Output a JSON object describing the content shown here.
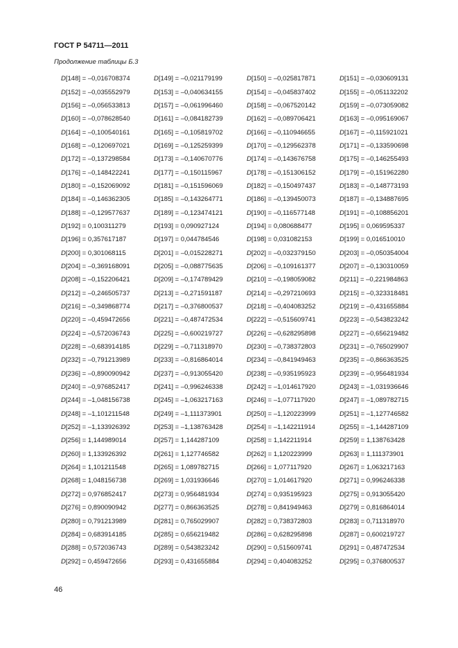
{
  "header": {
    "title": "ГОСТ Р 54711—2011"
  },
  "caption": "Продолжение таблицы Б.3",
  "symbol": "D",
  "rows": [
    [
      [
        "148",
        "–0,016708374"
      ],
      [
        "149",
        "–0,021179199"
      ],
      [
        "150",
        "–0,025817871"
      ],
      [
        "151",
        "–0,030609131"
      ]
    ],
    [
      [
        "152",
        "–0,035552979"
      ],
      [
        "153",
        "–0,040634155"
      ],
      [
        "154",
        "–0,045837402"
      ],
      [
        "155",
        "–0,051132202"
      ]
    ],
    [
      [
        "156",
        "–0,056533813"
      ],
      [
        "157",
        "–0,061996460"
      ],
      [
        "158",
        "–0,067520142"
      ],
      [
        "159",
        "–0,073059082"
      ]
    ],
    [
      [
        "160",
        "–0,078628540"
      ],
      [
        "161",
        "–0,084182739"
      ],
      [
        "162",
        "–0,089706421"
      ],
      [
        "163",
        "–0,095169067"
      ]
    ],
    [
      [
        "164",
        "–0,100540161"
      ],
      [
        "165",
        "–0,105819702"
      ],
      [
        "166",
        "–0,110946655"
      ],
      [
        "167",
        "–0,115921021"
      ]
    ],
    [
      [
        "168",
        "–0,120697021"
      ],
      [
        "169",
        "–0,125259399"
      ],
      [
        "170",
        "–0,129562378"
      ],
      [
        "171",
        "–0,133590698"
      ]
    ],
    [
      [
        "172",
        "–0,137298584"
      ],
      [
        "173",
        "–0,140670776"
      ],
      [
        "174",
        "–0,143676758"
      ],
      [
        "175",
        "–0,146255493"
      ]
    ],
    [
      [
        "176",
        "–0,148422241"
      ],
      [
        "177",
        "–0,150115967"
      ],
      [
        "178",
        "–0,151306152"
      ],
      [
        "179",
        "–0,151962280"
      ]
    ],
    [
      [
        "180",
        "–0,152069092"
      ],
      [
        "181",
        "–0,151596069"
      ],
      [
        "182",
        "–0,150497437"
      ],
      [
        "183",
        "–0,148773193"
      ]
    ],
    [
      [
        "184",
        "–0,146362305"
      ],
      [
        "185",
        "–0,143264771"
      ],
      [
        "186",
        "–0,139450073"
      ],
      [
        "187",
        "–0,134887695"
      ]
    ],
    [
      [
        "188",
        "–0,129577637"
      ],
      [
        "189",
        "–0,123474121"
      ],
      [
        "190",
        "–0,116577148"
      ],
      [
        "191",
        "–0,108856201"
      ]
    ],
    [
      [
        "192",
        "0,100311279"
      ],
      [
        "193",
        "0,090927124"
      ],
      [
        "194",
        "0,080688477"
      ],
      [
        "195",
        "0,069595337"
      ]
    ],
    [
      [
        "196",
        "0,357617187"
      ],
      [
        "197",
        "0,044784546"
      ],
      [
        "198",
        "0,031082153"
      ],
      [
        "199",
        "0,016510010"
      ]
    ],
    [
      [
        "200",
        "0,301068115"
      ],
      [
        "201",
        "–0,015228271"
      ],
      [
        "202",
        "–0,032379150"
      ],
      [
        "203",
        "–0,050354004"
      ]
    ],
    [
      [
        "204",
        "–0,369168091"
      ],
      [
        "205",
        "–0,088775635"
      ],
      [
        "206",
        "–0,109161377"
      ],
      [
        "207",
        "–0,130310059"
      ]
    ],
    [
      [
        "208",
        "–0,152206421"
      ],
      [
        "209",
        "–0,174789429"
      ],
      [
        "210",
        "–0,198059082"
      ],
      [
        "211",
        "–0,221984863"
      ]
    ],
    [
      [
        "212",
        "–0,246505737"
      ],
      [
        "213",
        "–0,271591187"
      ],
      [
        "214",
        "–0,297210693"
      ],
      [
        "215",
        "–0,323318481"
      ]
    ],
    [
      [
        "216",
        "–0,349868774"
      ],
      [
        "217",
        "–0,376800537"
      ],
      [
        "218",
        "–0,404083252"
      ],
      [
        "219",
        "–0,431655884"
      ]
    ],
    [
      [
        "220",
        "–0,459472656"
      ],
      [
        "221",
        "–0,487472534"
      ],
      [
        "222",
        "–0,515609741"
      ],
      [
        "223",
        "–0,543823242"
      ]
    ],
    [
      [
        "224",
        "–0,572036743"
      ],
      [
        "225",
        "–0,600219727"
      ],
      [
        "226",
        "–0,628295898"
      ],
      [
        "227",
        "–0,656219482"
      ]
    ],
    [
      [
        "228",
        "–0,683914185"
      ],
      [
        "229",
        "–0,711318970"
      ],
      [
        "230",
        "–0,738372803"
      ],
      [
        "231",
        "–0,765029907"
      ]
    ],
    [
      [
        "232",
        "–0,791213989"
      ],
      [
        "233",
        "–0,816864014"
      ],
      [
        "234",
        "–0,841949463"
      ],
      [
        "235",
        "–0,866363525"
      ]
    ],
    [
      [
        "236",
        "–0,890090942"
      ],
      [
        "237",
        "–0,913055420"
      ],
      [
        "238",
        "–0,935195923"
      ],
      [
        "239",
        "–0,956481934"
      ]
    ],
    [
      [
        "240",
        "–0,976852417"
      ],
      [
        "241",
        "–0,996246338"
      ],
      [
        "242",
        "–1,014617920"
      ],
      [
        "243",
        "–1,031936646"
      ]
    ],
    [
      [
        "244",
        "–1,048156738"
      ],
      [
        "245",
        "–1,063217163"
      ],
      [
        "246",
        "–1,077117920"
      ],
      [
        "247",
        "–1,089782715"
      ]
    ],
    [
      [
        "248",
        "–1,101211548"
      ],
      [
        "249",
        "–1,111373901"
      ],
      [
        "250",
        "–1,120223999"
      ],
      [
        "251",
        "–1,127746582"
      ]
    ],
    [
      [
        "252",
        "–1,133926392"
      ],
      [
        "253",
        "–1,138763428"
      ],
      [
        "254",
        "–1,142211914"
      ],
      [
        "255",
        "–1,144287109"
      ]
    ],
    [
      [
        "256",
        "1,144989014"
      ],
      [
        "257",
        "1,144287109"
      ],
      [
        "258",
        "1,142211914"
      ],
      [
        "259",
        "1,138763428"
      ]
    ],
    [
      [
        "260",
        "1,133926392"
      ],
      [
        "261",
        "1,127746582"
      ],
      [
        "262",
        "1,120223999"
      ],
      [
        "263",
        "1,111373901"
      ]
    ],
    [
      [
        "264",
        "1,101211548"
      ],
      [
        "265",
        "1,089782715"
      ],
      [
        "266",
        "1,077117920"
      ],
      [
        "267",
        "1,063217163"
      ]
    ],
    [
      [
        "268",
        "1,048156738"
      ],
      [
        "269",
        "1,031936646"
      ],
      [
        "270",
        "1,014617920"
      ],
      [
        "271",
        "0,996246338"
      ]
    ],
    [
      [
        "272",
        "0,976852417"
      ],
      [
        "273",
        "0,956481934"
      ],
      [
        "274",
        "0,935195923"
      ],
      [
        "275",
        "0,913055420"
      ]
    ],
    [
      [
        "276",
        "0,890090942"
      ],
      [
        "277",
        "0,866363525"
      ],
      [
        "278",
        "0,841949463"
      ],
      [
        "279",
        "0,816864014"
      ]
    ],
    [
      [
        "280",
        "0,791213989"
      ],
      [
        "281",
        "0,765029907"
      ],
      [
        "282",
        "0,738372803"
      ],
      [
        "283",
        "0,711318970"
      ]
    ],
    [
      [
        "284",
        "0,683914185"
      ],
      [
        "285",
        "0,656219482"
      ],
      [
        "286",
        "0,628295898"
      ],
      [
        "287",
        "0,600219727"
      ]
    ],
    [
      [
        "288",
        "0,572036743"
      ],
      [
        "289",
        "0,543823242"
      ],
      [
        "290",
        "0,515609741"
      ],
      [
        "291",
        "0,487472534"
      ]
    ],
    [
      [
        "292",
        "0,459472656"
      ],
      [
        "293",
        "0,431655884"
      ],
      [
        "294",
        "0,404083252"
      ],
      [
        "295",
        "0,376800537"
      ]
    ]
  ],
  "page_number": "46"
}
